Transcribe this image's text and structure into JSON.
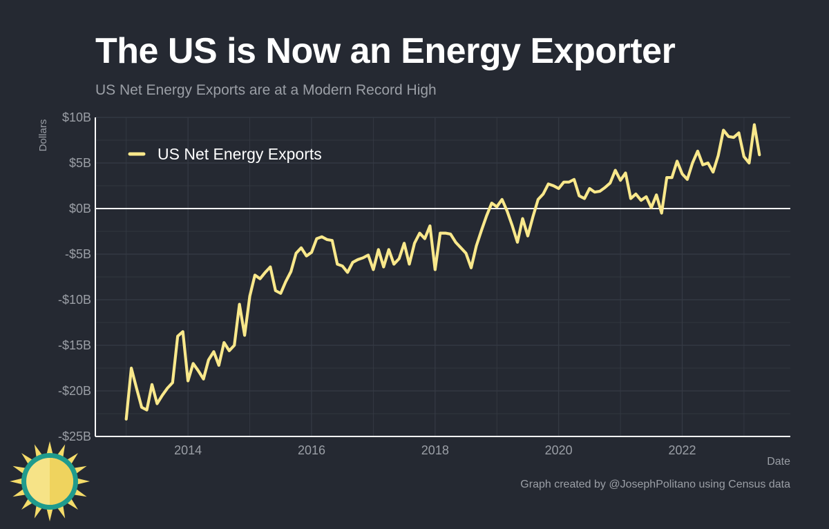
{
  "header": {
    "title": "The US is Now an Energy Exporter",
    "subtitle": "US Net Energy Exports are at a Modern Record High"
  },
  "caption": "Graph created by @JosephPolitano using Census data",
  "colors": {
    "background": "#252932",
    "line": "#f9e88b",
    "zero_line": "#ffffff",
    "grid": "#363b45",
    "tick_text": "#9b9fa6"
  },
  "chart_data": {
    "type": "line",
    "xlabel": "Date",
    "ylabel": "Dollars",
    "xlim": [
      2012.5,
      2023.75
    ],
    "ylim": [
      -25,
      10
    ],
    "x_ticks": [
      2014,
      2016,
      2018,
      2020,
      2022
    ],
    "x_tick_labels": [
      "2014",
      "2016",
      "2018",
      "2020",
      "2022"
    ],
    "y_ticks": [
      -25,
      -20,
      -15,
      -10,
      -5,
      0,
      5,
      10
    ],
    "y_tick_labels": [
      "-$25B",
      "-$20B",
      "-$15B",
      "-$10B",
      "-$5B",
      "$0B",
      "$5B",
      "$10B"
    ],
    "grid": true,
    "legend": {
      "position": "top-left"
    },
    "series": [
      {
        "name": "US Net Energy Exports",
        "color": "#f9e88b",
        "x": [
          2013.0,
          2013.083,
          2013.167,
          2013.25,
          2013.333,
          2013.417,
          2013.5,
          2013.583,
          2013.667,
          2013.75,
          2013.833,
          2013.917,
          2014.0,
          2014.083,
          2014.167,
          2014.25,
          2014.333,
          2014.417,
          2014.5,
          2014.583,
          2014.667,
          2014.75,
          2014.833,
          2014.917,
          2015.0,
          2015.083,
          2015.167,
          2015.25,
          2015.333,
          2015.417,
          2015.5,
          2015.583,
          2015.667,
          2015.75,
          2015.833,
          2015.917,
          2016.0,
          2016.083,
          2016.167,
          2016.25,
          2016.333,
          2016.417,
          2016.5,
          2016.583,
          2016.667,
          2016.75,
          2016.833,
          2016.917,
          2017.0,
          2017.083,
          2017.167,
          2017.25,
          2017.333,
          2017.417,
          2017.5,
          2017.583,
          2017.667,
          2017.75,
          2017.833,
          2017.917,
          2018.0,
          2018.083,
          2018.167,
          2018.25,
          2018.333,
          2018.417,
          2018.5,
          2018.583,
          2018.667,
          2018.75,
          2018.833,
          2018.917,
          2019.0,
          2019.083,
          2019.167,
          2019.25,
          2019.333,
          2019.417,
          2019.5,
          2019.583,
          2019.667,
          2019.75,
          2019.833,
          2019.917,
          2020.0,
          2020.083,
          2020.167,
          2020.25,
          2020.333,
          2020.417,
          2020.5,
          2020.583,
          2020.667,
          2020.75,
          2020.833,
          2020.917,
          2021.0,
          2021.083,
          2021.167,
          2021.25,
          2021.333,
          2021.417,
          2021.5,
          2021.583,
          2021.667,
          2021.75,
          2021.833,
          2021.917,
          2022.0,
          2022.083,
          2022.167,
          2022.25,
          2022.333,
          2022.417,
          2022.5,
          2022.583,
          2022.667,
          2022.75,
          2022.833,
          2022.917,
          2023.0,
          2023.083,
          2023.167,
          2023.25
        ],
        "values": [
          -23.1,
          -17.5,
          -19.7,
          -21.8,
          -22.1,
          -19.3,
          -21.4,
          -20.5,
          -19.7,
          -19.1,
          -14.0,
          -13.5,
          -18.9,
          -17.0,
          -17.8,
          -18.7,
          -16.6,
          -15.7,
          -17.2,
          -14.7,
          -15.6,
          -15.0,
          -10.5,
          -13.9,
          -9.6,
          -7.3,
          -7.7,
          -7.0,
          -6.4,
          -9.0,
          -9.3,
          -8.0,
          -6.9,
          -4.9,
          -4.3,
          -5.2,
          -4.8,
          -3.3,
          -3.1,
          -3.4,
          -3.5,
          -6.1,
          -6.3,
          -7.0,
          -5.9,
          -5.6,
          -5.4,
          -5.1,
          -6.7,
          -4.5,
          -6.4,
          -4.5,
          -6.1,
          -5.5,
          -3.8,
          -6.1,
          -3.8,
          -2.7,
          -3.3,
          -1.9,
          -6.7,
          -2.7,
          -2.7,
          -2.8,
          -3.7,
          -4.3,
          -4.9,
          -6.5,
          -4.1,
          -2.4,
          -0.8,
          0.6,
          0.2,
          1.0,
          -0.3,
          -1.9,
          -3.7,
          -1.1,
          -3.0,
          -0.9,
          1.0,
          1.6,
          2.7,
          2.5,
          2.2,
          2.9,
          2.9,
          3.2,
          1.4,
          1.1,
          2.2,
          1.8,
          1.9,
          2.3,
          2.8,
          4.2,
          3.1,
          3.9,
          1.1,
          1.6,
          0.9,
          1.3,
          0.1,
          1.5,
          -0.5,
          3.4,
          3.4,
          5.2,
          3.8,
          3.2,
          5.0,
          6.3,
          4.8,
          5.0,
          4.0,
          5.8,
          8.6,
          7.9,
          7.8,
          8.3,
          5.7,
          5.0,
          9.2,
          5.9
        ]
      }
    ]
  }
}
